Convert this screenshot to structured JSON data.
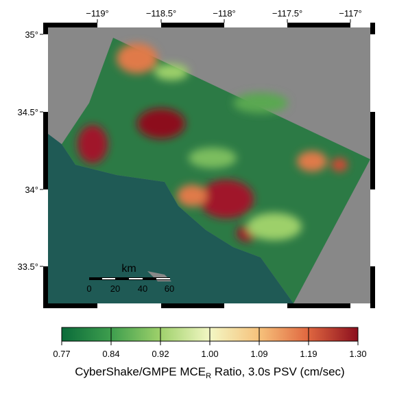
{
  "map": {
    "lon_ticks": [
      "−119°",
      "−118.5°",
      "−118°",
      "−117.5°",
      "−117°"
    ],
    "lat_ticks": [
      "35°",
      "34.5°",
      "34°",
      "33.5°"
    ],
    "scale_bar": {
      "title": "km",
      "ticks": [
        "0",
        "20",
        "40",
        "60"
      ]
    },
    "colorbar": {
      "ticks": [
        "0.77",
        "0.84",
        "0.92",
        "1.00",
        "1.09",
        "1.19",
        "1.30"
      ],
      "caption": {
        "main": "CyberShake/GMPE MCE",
        "subscript": "R",
        "rest": " Ratio, 3.0s PSV (cm/sec)"
      }
    }
  }
}
